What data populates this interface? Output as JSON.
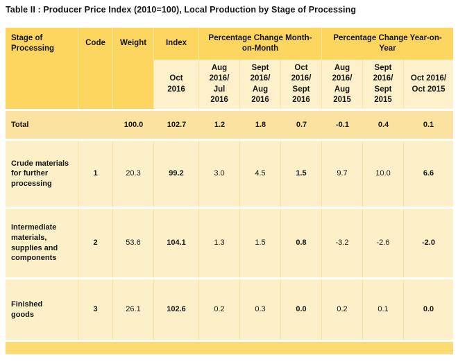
{
  "title": "Table II : Producer Price Index (2010=100), Local Production by Stage of Processing",
  "chart_data": {
    "type": "table",
    "title": "Table II : Producer Price Index (2010=100), Local Production by Stage of Processing",
    "columns": {
      "stage": "Stage of Processing",
      "code": "Code",
      "weight": "Weight",
      "index": "Index",
      "index_period": "Oct 2016",
      "mom_group": "Percentage Change Month-on-Month",
      "yoy_group": "Percentage Change Year-on-Year",
      "mom_periods": [
        "Aug 2016/ Jul 2016",
        "Sept 2016/ Aug 2016",
        "Oct 2016/ Sept 2016"
      ],
      "yoy_periods": [
        "Aug 2016/ Aug 2015",
        "Sept 2016/ Sept 2015",
        "Oct 2016/ Oct 2015"
      ]
    },
    "rows": [
      {
        "stage": "Total",
        "code": "",
        "weight": "100.0",
        "index": "102.7",
        "mom": [
          "1.2",
          "1.8",
          "0.7"
        ],
        "yoy": [
          "-0.1",
          "0.4",
          "0.1"
        ]
      },
      {
        "stage": "Crude materials for further processing",
        "code": "1",
        "weight": "20.3",
        "index": "99.2",
        "mom": [
          "3.0",
          "4.5",
          "1.5"
        ],
        "yoy": [
          "9.7",
          "10.0",
          "6.6"
        ]
      },
      {
        "stage": "Intermediate materials, supplies and components",
        "code": "2",
        "weight": "53.6",
        "index": "104.1",
        "mom": [
          "1.3",
          "1.5",
          "0.8"
        ],
        "yoy": [
          "-3.2",
          "-2.6",
          "-2.0"
        ]
      },
      {
        "stage": "Finished goods",
        "code": "3",
        "weight": "26.1",
        "index": "102.6",
        "mom": [
          "0.2",
          "0.3",
          "0.0"
        ],
        "yoy": [
          "0.2",
          "0.1",
          "0.0"
        ]
      }
    ],
    "layout": {
      "header_color": "#FCD65F",
      "subheader_color": "#FDF0CB",
      "body_color": "#FDEFC8",
      "total_row_color": "#FBE2A0",
      "footer_band_color": "#FCDB72",
      "text_color": "#151515"
    }
  }
}
